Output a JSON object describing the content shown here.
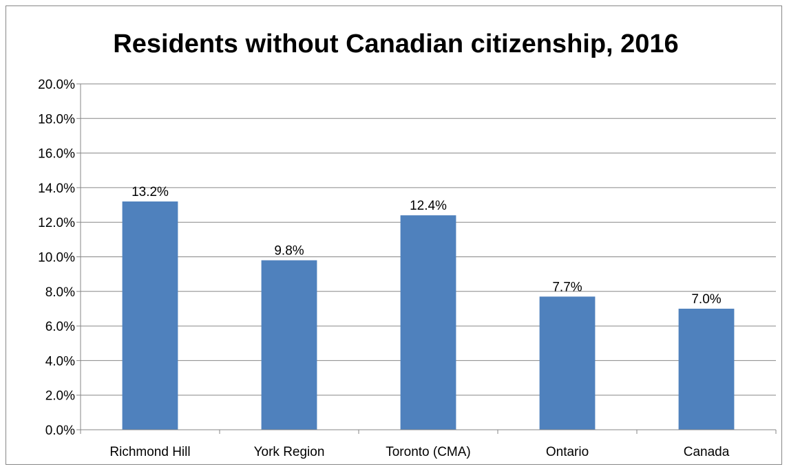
{
  "chart_data": {
    "type": "bar",
    "title": "Residents without Canadian citizenship, 2016",
    "categories": [
      "Richmond Hill",
      "York Region",
      "Toronto (CMA)",
      "Ontario",
      "Canada"
    ],
    "values": [
      13.2,
      9.8,
      12.4,
      7.7,
      7.0
    ],
    "data_labels": [
      "13.2%",
      "9.8%",
      "12.4%",
      "7.7%",
      "7.0%"
    ],
    "ylim": [
      0,
      20
    ],
    "yticks": [
      "0.0%",
      "2.0%",
      "4.0%",
      "6.0%",
      "8.0%",
      "10.0%",
      "12.0%",
      "14.0%",
      "16.0%",
      "18.0%",
      "20.0%"
    ],
    "xlabel": "",
    "ylabel": "",
    "grid": true,
    "legend": "none",
    "colors": {
      "bar": "#4F81BD",
      "grid": "#868686",
      "axis": "#868686"
    }
  }
}
